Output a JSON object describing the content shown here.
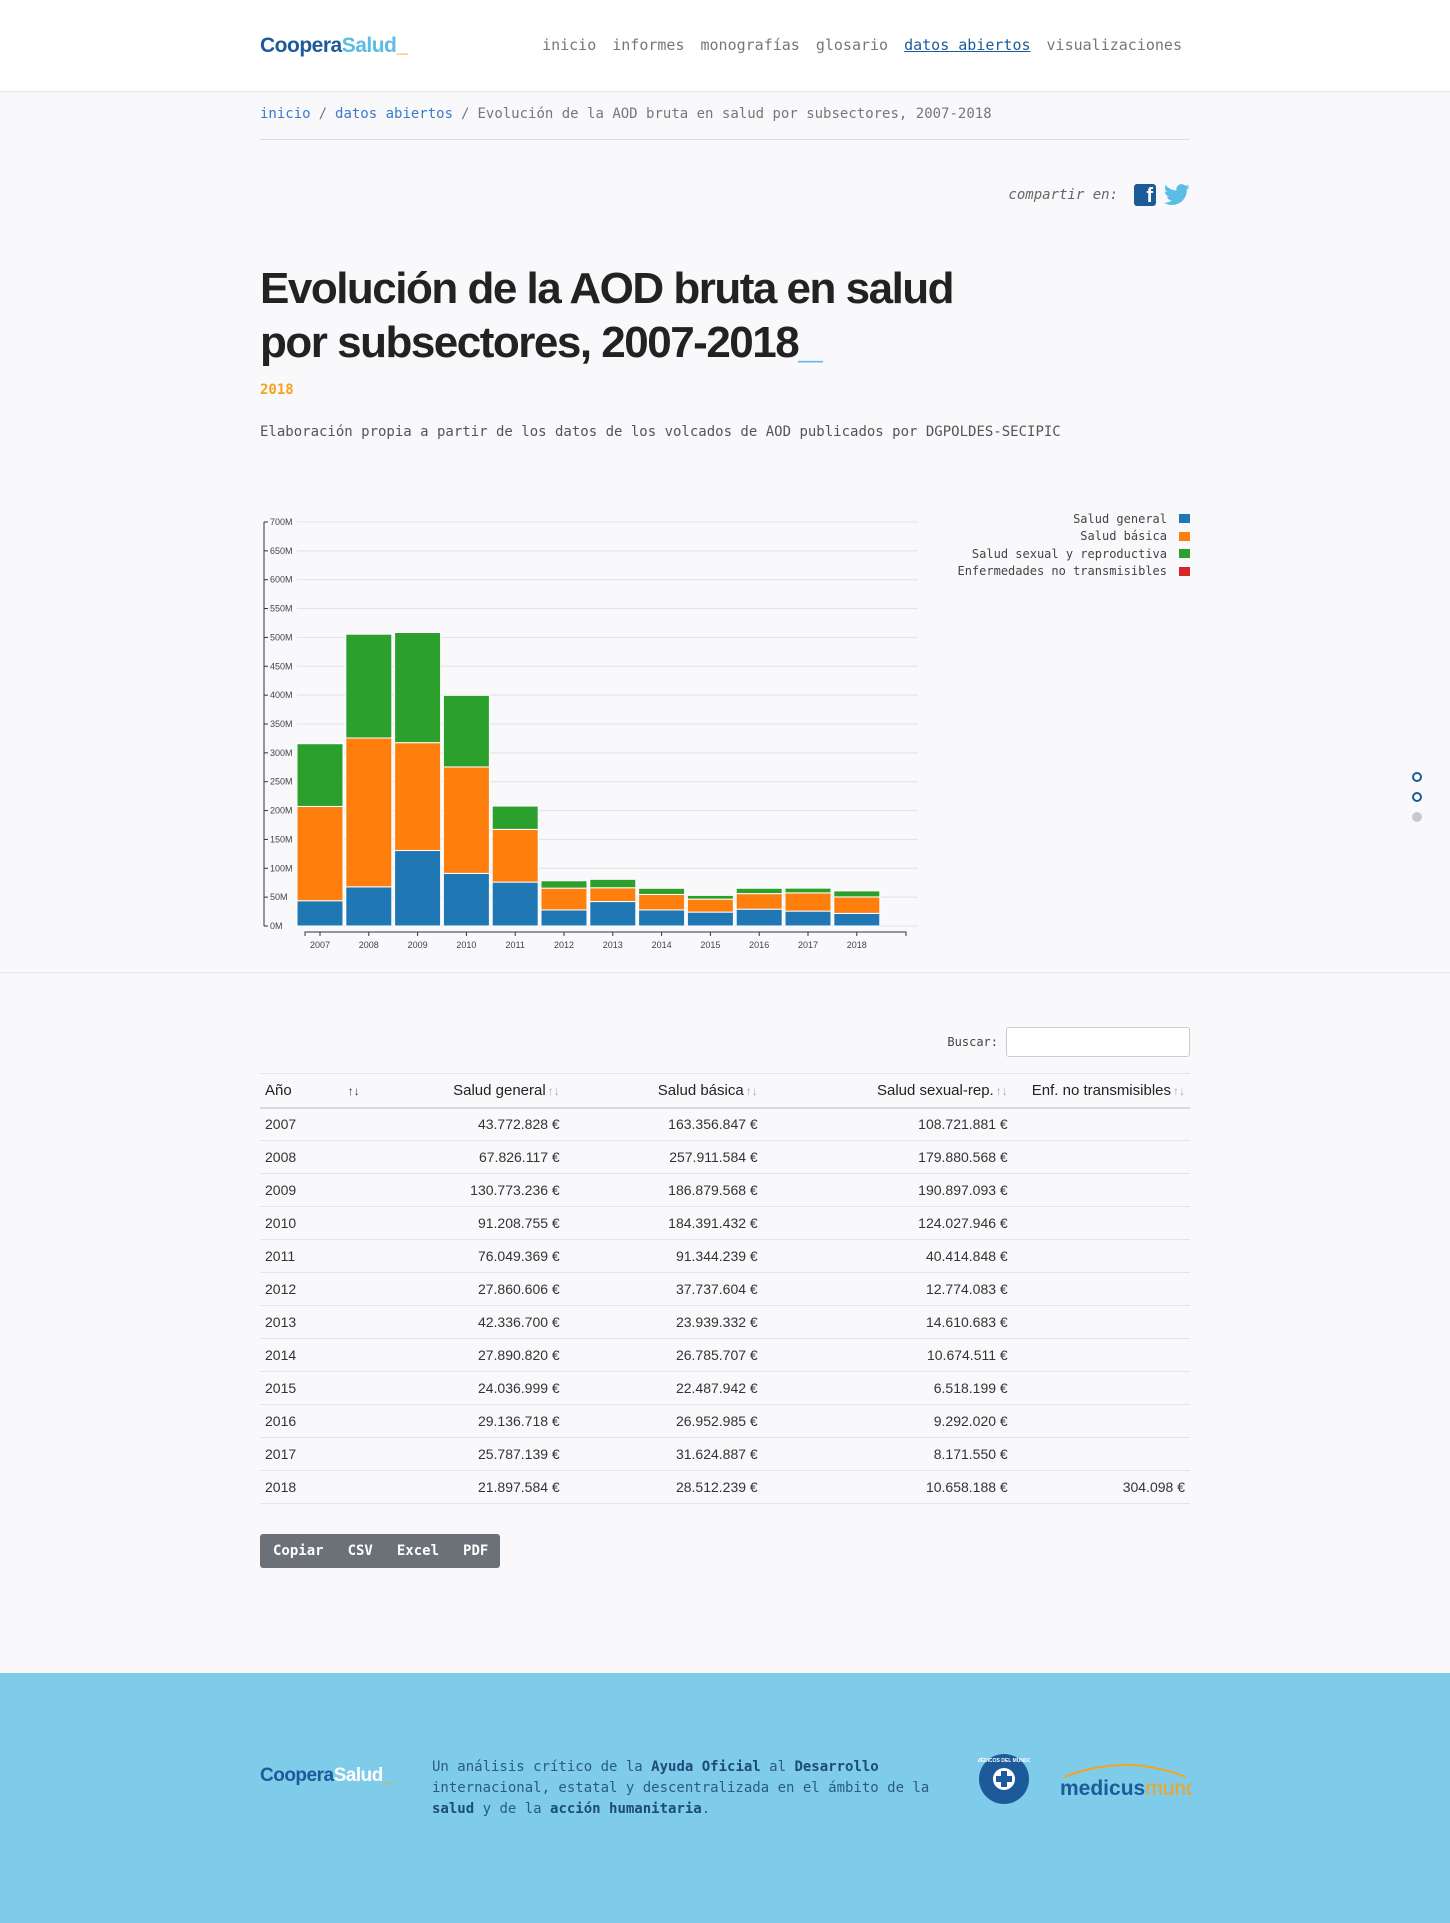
{
  "header": {
    "logo": {
      "part1": "Coopera",
      "part2": "Salud",
      "part3": "_"
    },
    "nav": [
      "inicio",
      "informes",
      "monografías",
      "glosario",
      "datos abiertos",
      "visualizaciones"
    ],
    "active_nav": "datos abiertos"
  },
  "breadcrumb": {
    "home": "inicio",
    "section": "datos abiertos",
    "current": "Evolución de la AOD bruta en salud por subsectores, 2007-2018",
    "sep": "/"
  },
  "share": {
    "label": "compartir en:"
  },
  "page": {
    "title": "Evolución de la AOD bruta en salud por subsectores, 2007-2018",
    "title_cursor": "_",
    "year": "2018",
    "source": "Elaboración propia a partir de los datos de los volcados de AOD publicados por DGPOLDES-SECIPIC"
  },
  "chart_data": {
    "type": "bar",
    "stacked": true,
    "categories": [
      "2007",
      "2008",
      "2009",
      "2010",
      "2011",
      "2012",
      "2013",
      "2014",
      "2015",
      "2016",
      "2017",
      "2018"
    ],
    "series": [
      {
        "name": "Salud general",
        "color": "#1f77b4",
        "values": [
          43772828,
          67826117,
          130773236,
          91208755,
          76049369,
          27860606,
          42336700,
          27890820,
          24036999,
          29136718,
          25787139,
          21897584
        ]
      },
      {
        "name": "Salud básica",
        "color": "#ff7f0e",
        "values": [
          163356847,
          257911584,
          186879568,
          184391432,
          91344239,
          37737604,
          23939332,
          26785707,
          22487942,
          26952985,
          31624887,
          28512239
        ]
      },
      {
        "name": "Salud sexual y reproductiva",
        "color": "#2ca02c",
        "values": [
          108721881,
          179880568,
          190897093,
          124027946,
          40414848,
          12774083,
          14610683,
          10674511,
          6518199,
          9292020,
          8171550,
          10658188
        ]
      },
      {
        "name": "Enfermedades no transmisibles",
        "color": "#d62728",
        "values": [
          0,
          0,
          0,
          0,
          0,
          0,
          0,
          0,
          0,
          0,
          0,
          304098
        ]
      }
    ],
    "yticks": [
      "0M",
      "50M",
      "100M",
      "150M",
      "200M",
      "250M",
      "300M",
      "350M",
      "400M",
      "450M",
      "500M",
      "550M",
      "600M",
      "650M",
      "700M"
    ],
    "ylim": [
      0,
      700000000
    ],
    "grid": true,
    "legend": "top-right"
  },
  "table": {
    "search_label": "Buscar:",
    "headers": [
      "Año",
      "Salud general",
      "Salud básica",
      "Salud sexual-rep.",
      "Enf. no transmisibles"
    ],
    "rows": [
      [
        "2007",
        "43.772.828 €",
        "163.356.847 €",
        "108.721.881 €",
        ""
      ],
      [
        "2008",
        "67.826.117 €",
        "257.911.584 €",
        "179.880.568 €",
        ""
      ],
      [
        "2009",
        "130.773.236 €",
        "186.879.568 €",
        "190.897.093 €",
        ""
      ],
      [
        "2010",
        "91.208.755 €",
        "184.391.432 €",
        "124.027.946 €",
        ""
      ],
      [
        "2011",
        "76.049.369 €",
        "91.344.239 €",
        "40.414.848 €",
        ""
      ],
      [
        "2012",
        "27.860.606 €",
        "37.737.604 €",
        "12.774.083 €",
        ""
      ],
      [
        "2013",
        "42.336.700 €",
        "23.939.332 €",
        "14.610.683 €",
        ""
      ],
      [
        "2014",
        "27.890.820 €",
        "26.785.707 €",
        "10.674.511 €",
        ""
      ],
      [
        "2015",
        "24.036.999 €",
        "22.487.942 €",
        "6.518.199 €",
        ""
      ],
      [
        "2016",
        "29.136.718 €",
        "26.952.985 €",
        "9.292.020 €",
        ""
      ],
      [
        "2017",
        "25.787.139 €",
        "31.624.887 €",
        "8.171.550 €",
        ""
      ],
      [
        "2018",
        "21.897.584 €",
        "28.512.239 €",
        "10.658.188 €",
        "304.098 €"
      ]
    ],
    "buttons": [
      "Copiar",
      "CSV",
      "Excel",
      "PDF"
    ]
  },
  "footer": {
    "t1": "Un análisis crítico de la ",
    "b1": "Ayuda Oficial",
    "t2": " al ",
    "b2": "Desarrollo",
    "t3": " internacional, estatal y descentralizada en el ámbito de la ",
    "b3": "salud",
    "t4": " y de la ",
    "b4": "acción humanitaria",
    "t5": ".",
    "partner1": "MÉDICOS DEL MUNDO",
    "partner2_a": "medicus",
    "partner2_b": "mundi"
  },
  "colors": {
    "brand_dark": "#1d5a9a",
    "brand_light": "#5bbde6",
    "accent": "#f7a21b",
    "footer_bg": "#7ecbea"
  },
  "icons": [
    "facebook-icon",
    "twitter-icon",
    "sort-icon"
  ]
}
